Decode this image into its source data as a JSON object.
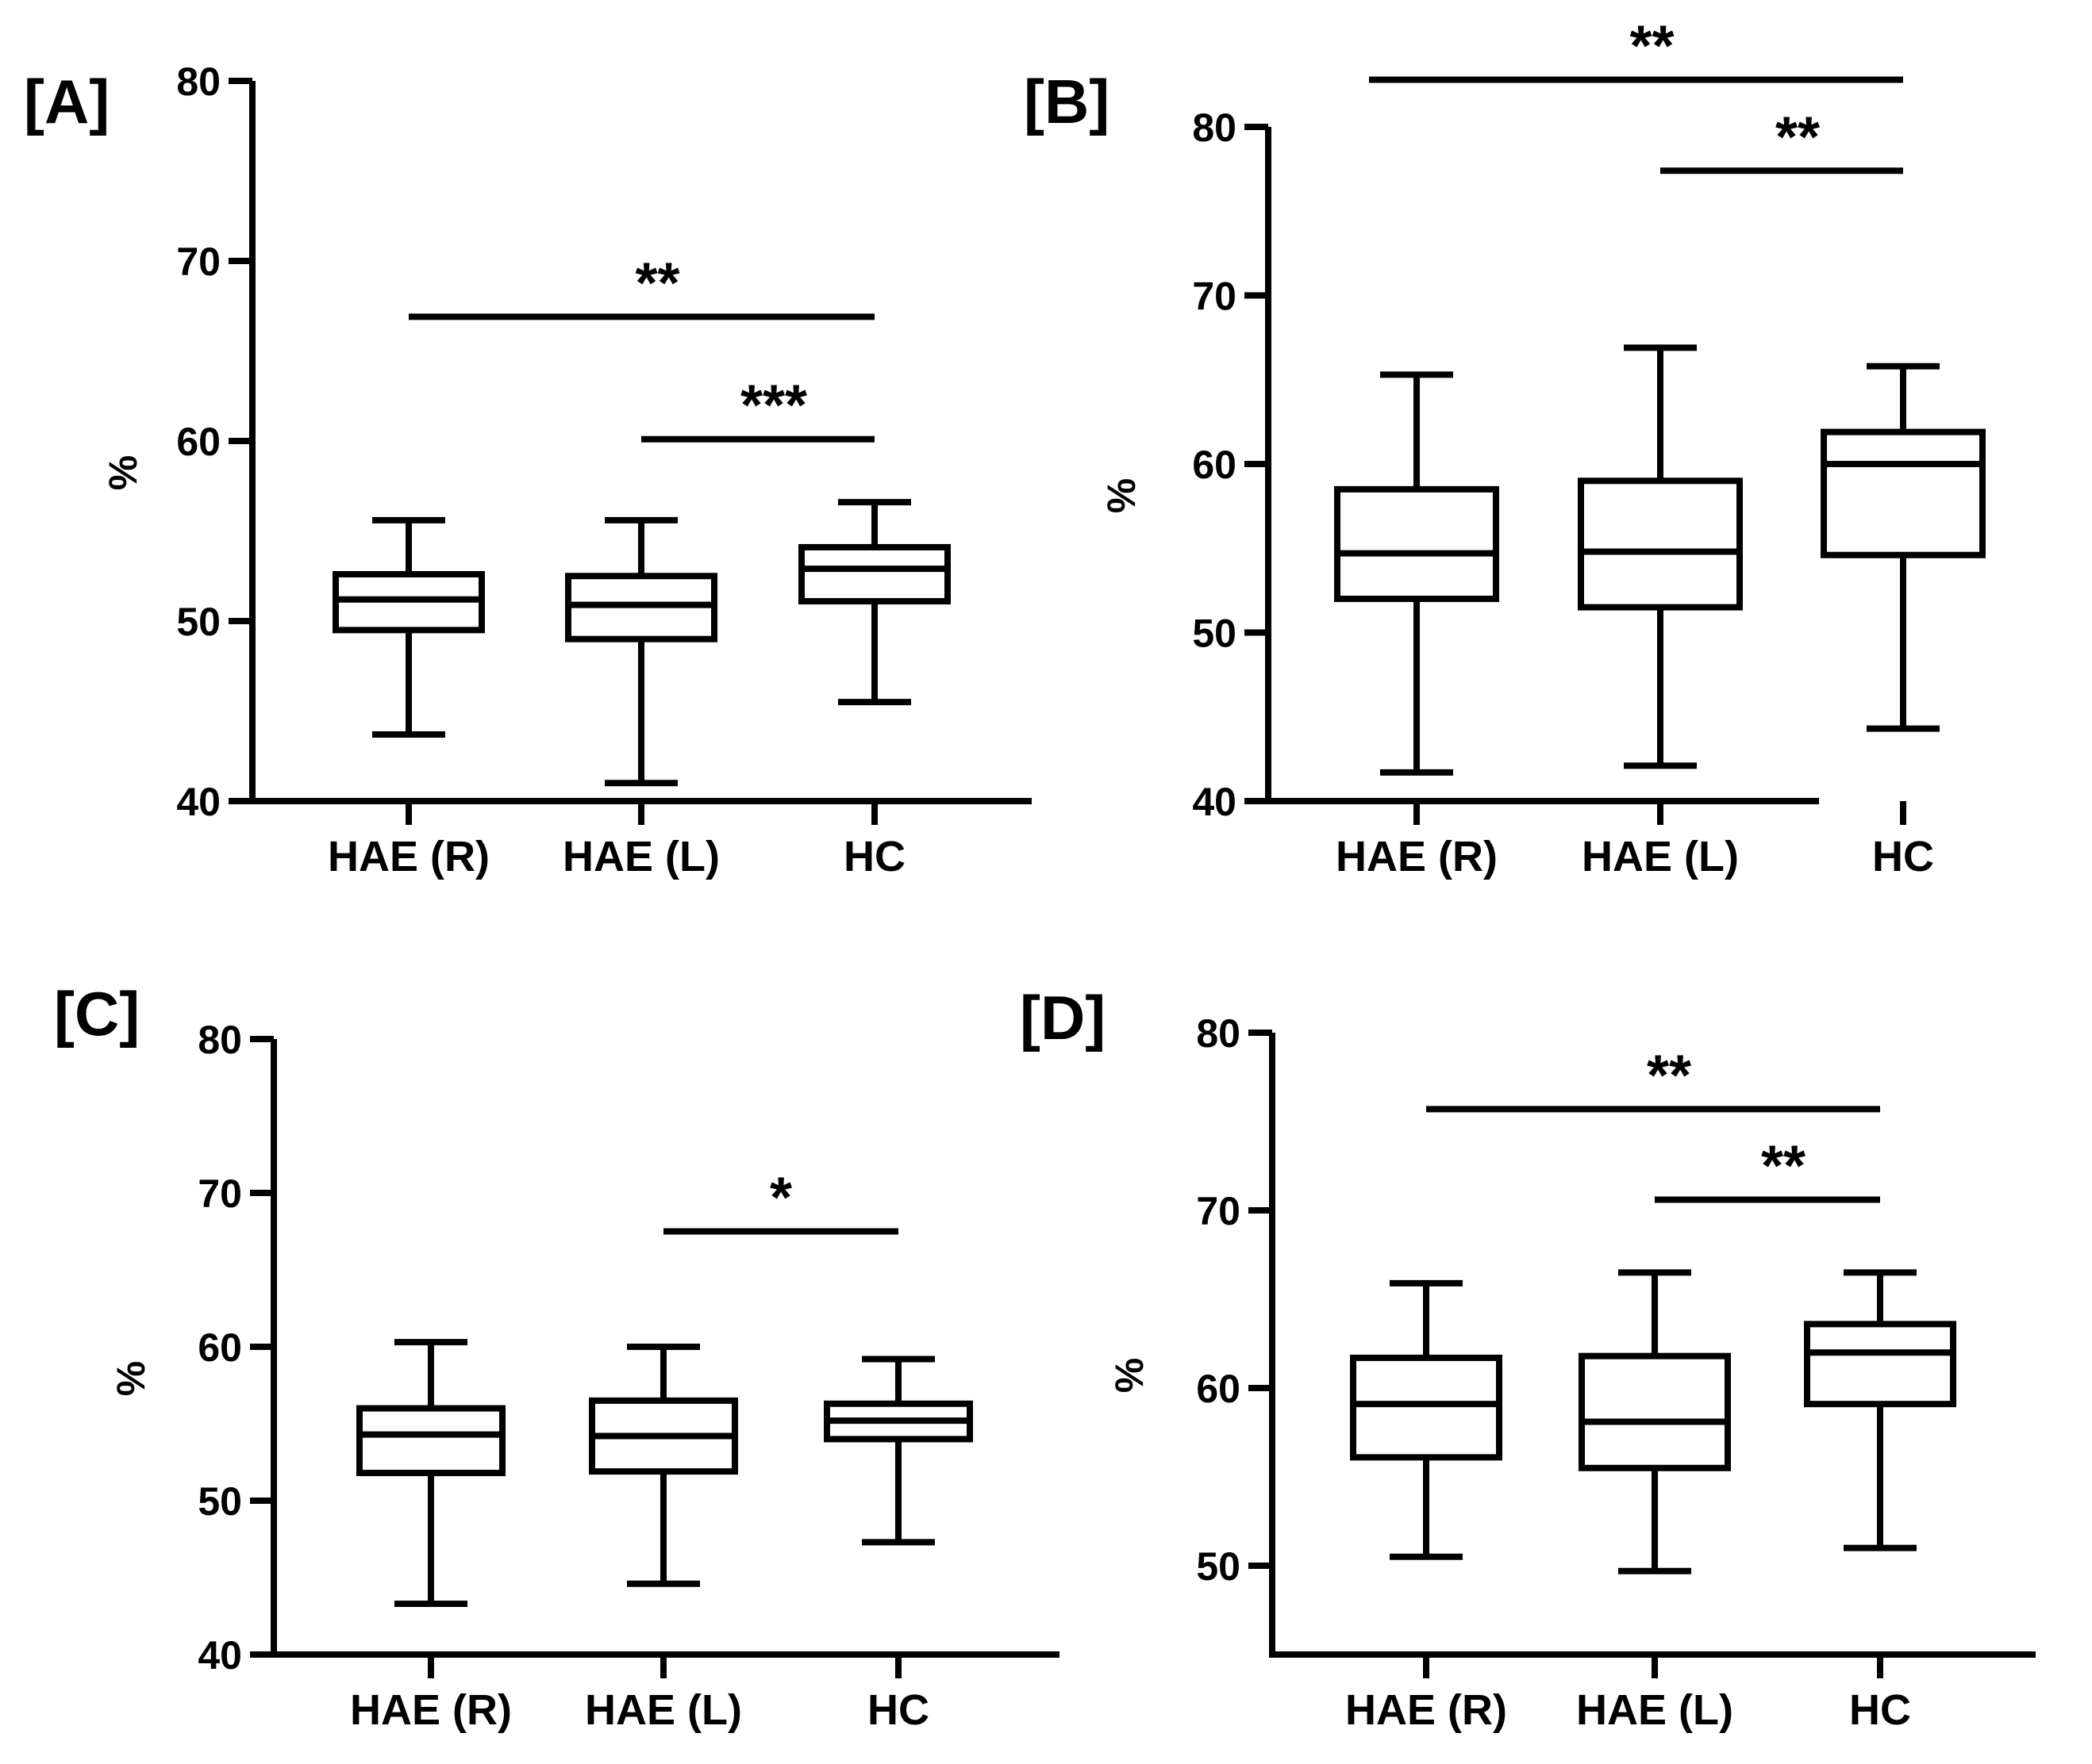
{
  "chart_data": [
    {
      "type": "boxplot",
      "panel_label": "[A]",
      "ylabel": "%",
      "ylim": [
        40,
        80
      ],
      "yticks": [
        40,
        50,
        60,
        70,
        80
      ],
      "categories": [
        "HAE (R)",
        "HAE (L)",
        "HC"
      ],
      "boxes": [
        {
          "min": 43.7,
          "q1": 49.5,
          "median": 51.2,
          "q3": 52.6,
          "max": 55.6
        },
        {
          "min": 41.0,
          "q1": 49.0,
          "median": 50.9,
          "q3": 52.5,
          "max": 55.6
        },
        {
          "min": 45.5,
          "q1": 51.1,
          "median": 52.9,
          "q3": 54.1,
          "max": 56.6
        }
      ],
      "significance": [
        {
          "from": 0,
          "to": 2,
          "y": 66.9,
          "label": "**"
        },
        {
          "from": 1,
          "to": 2,
          "y": 60.1,
          "label": "***"
        }
      ]
    },
    {
      "type": "boxplot",
      "panel_label": "[B]",
      "ylabel": "%",
      "ylim": [
        40,
        80
      ],
      "yticks": [
        40,
        50,
        60,
        70,
        80
      ],
      "categories": [
        "HAE (R)",
        "HAE (L)",
        "HC"
      ],
      "boxes": [
        {
          "min": 41.7,
          "q1": 52.0,
          "median": 54.7,
          "q3": 58.5,
          "max": 65.3
        },
        {
          "min": 42.1,
          "q1": 51.5,
          "median": 54.8,
          "q3": 59.0,
          "max": 66.9
        },
        {
          "min": 44.3,
          "q1": 54.6,
          "median": 60.0,
          "q3": 61.9,
          "max": 65.8
        }
      ],
      "significance": [
        {
          "from": 0,
          "to": 2,
          "y": 82.8,
          "label": "**"
        },
        {
          "from": 1,
          "to": 2,
          "y": 77.4,
          "label": "**"
        }
      ]
    },
    {
      "type": "boxplot",
      "panel_label": "[C]",
      "ylabel": "%",
      "ylim": [
        40,
        80
      ],
      "yticks": [
        40,
        50,
        60,
        70,
        80
      ],
      "categories": [
        "HAE (R)",
        "HAE (L)",
        "HC"
      ],
      "boxes": [
        {
          "min": 43.3,
          "q1": 51.8,
          "median": 54.3,
          "q3": 56.0,
          "max": 60.3
        },
        {
          "min": 44.6,
          "q1": 51.9,
          "median": 54.2,
          "q3": 56.5,
          "max": 60.0
        },
        {
          "min": 47.3,
          "q1": 54.0,
          "median": 55.2,
          "q3": 56.3,
          "max": 59.2
        }
      ],
      "significance": [
        {
          "from": 1,
          "to": 2,
          "y": 67.5,
          "label": "*"
        }
      ]
    },
    {
      "type": "boxplot",
      "panel_label": "[D]",
      "ylabel": "%",
      "ylim": [
        45,
        80
      ],
      "yticks": [
        50,
        60,
        70,
        80
      ],
      "categories": [
        "HAE (R)",
        "HAE (L)",
        "HC"
      ],
      "boxes": [
        {
          "min": 50.5,
          "q1": 56.1,
          "median": 59.1,
          "q3": 61.7,
          "max": 65.9
        },
        {
          "min": 49.7,
          "q1": 55.5,
          "median": 58.1,
          "q3": 61.8,
          "max": 66.5
        },
        {
          "min": 51.0,
          "q1": 59.1,
          "median": 62.0,
          "q3": 63.6,
          "max": 66.5
        }
      ],
      "significance": [
        {
          "from": 0,
          "to": 2,
          "y": 75.7,
          "label": "**"
        },
        {
          "from": 1,
          "to": 2,
          "y": 70.6,
          "label": "**"
        }
      ]
    }
  ]
}
